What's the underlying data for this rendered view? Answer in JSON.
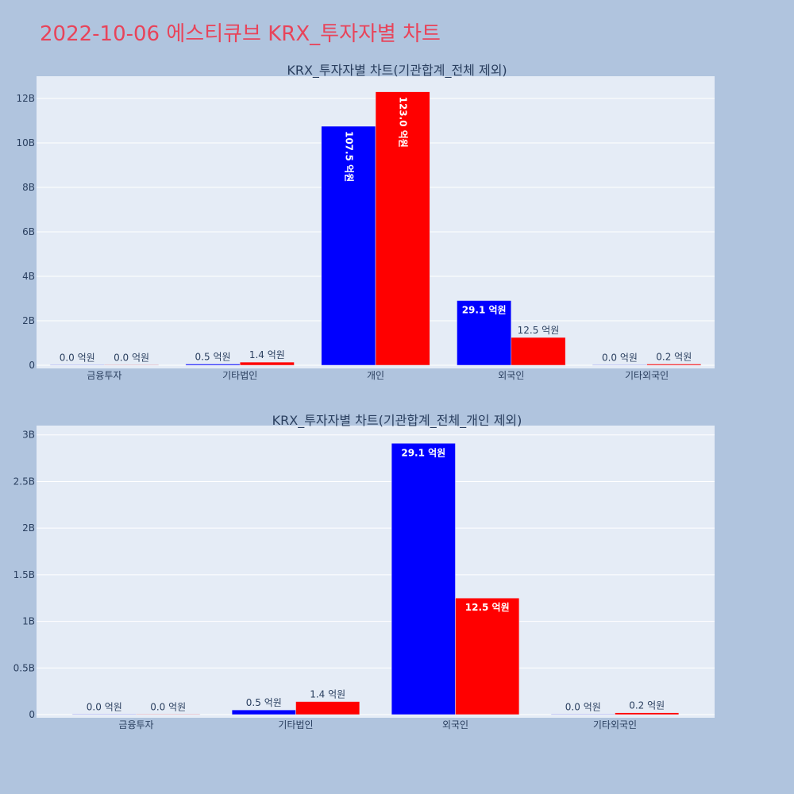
{
  "page": {
    "title": "2022-10-06 에스티큐브 KRX_투자자별 차트",
    "title_color": "#e8445a",
    "background": "#b0c4de",
    "plot_background": "#e5ecf6"
  },
  "chart_data": [
    {
      "type": "bar",
      "title": "KRX_투자자별 차트(기관합계_전체 제외)",
      "categories": [
        "금융투자",
        "기타법인",
        "개인",
        "외국인",
        "기타외국인"
      ],
      "series": [
        {
          "color": "#0000ff",
          "values": [
            0,
            50000000,
            10750000000,
            2910000000,
            0
          ],
          "labels": [
            "0.0 억원",
            "0.5 억원",
            "107.5 억원",
            "29.1 억원",
            "0.0 억원"
          ]
        },
        {
          "color": "#ff0000",
          "values": [
            0,
            140000000,
            12300000000,
            1250000000,
            20000000
          ],
          "labels": [
            "0.0 억원",
            "1.4 억원",
            "123.0 억원",
            "12.5 억원",
            "0.2 억원"
          ]
        }
      ],
      "ylim": [
        0,
        13000000000
      ],
      "yticks": [
        0,
        2000000000,
        4000000000,
        6000000000,
        8000000000,
        10000000000,
        12000000000
      ],
      "ytick_labels": [
        "0",
        "2B",
        "4B",
        "6B",
        "8B",
        "10B",
        "12B"
      ],
      "grid": true,
      "legend": "none"
    },
    {
      "type": "bar",
      "title": "KRX_투자자별 차트(기관합계_전체_개인 제외)",
      "categories": [
        "금융투자",
        "기타법인",
        "외국인",
        "기타외국인"
      ],
      "series": [
        {
          "color": "#0000ff",
          "values": [
            0,
            50000000,
            2910000000,
            0
          ],
          "labels": [
            "0.0 억원",
            "0.5 억원",
            "29.1 억원",
            "0.0 억원"
          ]
        },
        {
          "color": "#ff0000",
          "values": [
            0,
            140000000,
            1250000000,
            20000000
          ],
          "labels": [
            "0.0 억원",
            "1.4 억원",
            "12.5 억원",
            "0.2 억원"
          ]
        }
      ],
      "ylim": [
        0,
        3100000000
      ],
      "yticks": [
        0,
        500000000,
        1000000000,
        1500000000,
        2000000000,
        2500000000,
        3000000000
      ],
      "ytick_labels": [
        "0",
        "0.5B",
        "1B",
        "1.5B",
        "2B",
        "2.5B",
        "3B"
      ],
      "grid": true,
      "legend": "none"
    }
  ]
}
